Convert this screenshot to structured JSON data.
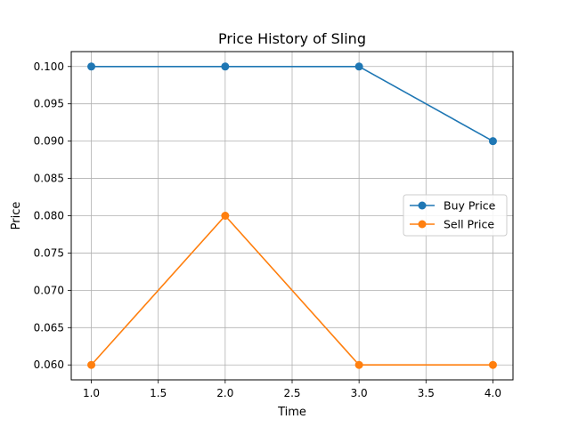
{
  "chart_data": {
    "type": "line",
    "title": "Price History of Sling",
    "xlabel": "Time",
    "ylabel": "Price",
    "x": [
      1.0,
      2.0,
      3.0,
      4.0
    ],
    "xlim": [
      0.85,
      4.15
    ],
    "ylim": [
      0.058,
      0.102
    ],
    "xticks": [
      1.0,
      1.5,
      2.0,
      2.5,
      3.0,
      3.5,
      4.0
    ],
    "xtick_labels": [
      "1.0",
      "1.5",
      "2.0",
      "2.5",
      "3.0",
      "3.5",
      "4.0"
    ],
    "yticks": [
      0.06,
      0.065,
      0.07,
      0.075,
      0.08,
      0.085,
      0.09,
      0.095,
      0.1
    ],
    "ytick_labels": [
      "0.060",
      "0.065",
      "0.070",
      "0.075",
      "0.080",
      "0.085",
      "0.090",
      "0.095",
      "0.100"
    ],
    "grid": true,
    "legend_position": "center-right",
    "series": [
      {
        "name": "Buy Price",
        "color": "#1f77b4",
        "values": [
          0.1,
          0.1,
          0.1,
          0.09
        ]
      },
      {
        "name": "Sell Price",
        "color": "#ff7f0e",
        "values": [
          0.06,
          0.08,
          0.06,
          0.06
        ]
      }
    ]
  }
}
